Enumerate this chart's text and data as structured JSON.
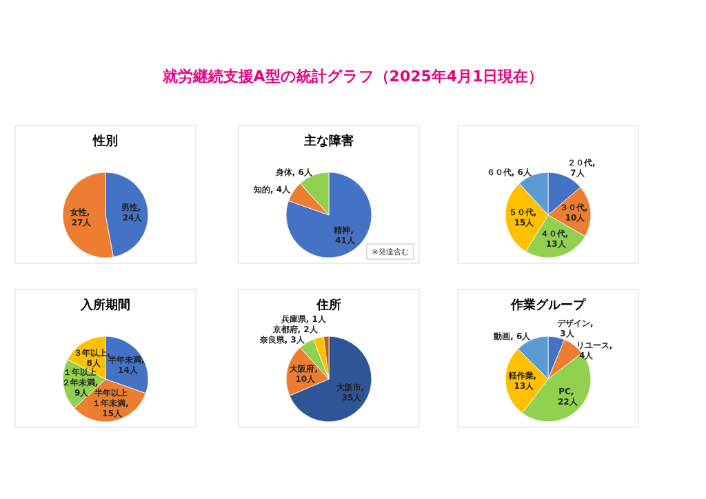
{
  "chart_data": [
    {
      "type": "other",
      "title": "就労継続支援A型の統計グラフ（2025年4月1日現在）"
    },
    {
      "type": "pie",
      "title": "性別",
      "values": [
        24,
        27
      ],
      "colors": [
        "#4472c4",
        "#ed7d31"
      ],
      "value_labels": [
        "男性, 24人",
        "女性, 27人"
      ]
    },
    {
      "type": "pie",
      "title": "主な障害",
      "values": [
        41,
        4,
        6
      ],
      "colors": [
        "#4472c4",
        "#ed7d31",
        "#92d050"
      ],
      "value_labels": [
        "精神, 41人",
        "知的, 4人",
        "身体, 6人"
      ],
      "annotations": [
        "※発達含む"
      ]
    },
    {
      "type": "pie",
      "values": [
        7,
        10,
        13,
        15,
        6
      ],
      "colors": [
        "#4472c4",
        "#ed7d31",
        "#92d050",
        "#ffc000",
        "#5b9bd5"
      ],
      "value_labels": [
        "２０代, 7人",
        "３０代, 10人",
        "４０代, 13人",
        "５０代, 15人",
        "６０代, 6人"
      ]
    },
    {
      "type": "pie",
      "title": "入所期間",
      "values": [
        14,
        15,
        9,
        8
      ],
      "colors": [
        "#4472c4",
        "#ed7d31",
        "#92d050",
        "#ffc000"
      ],
      "value_labels": [
        "半年未満, 14人",
        "半年以上１年未満, 15人",
        "１年以上２年未満, 9人",
        "３年以上, 8人"
      ]
    },
    {
      "type": "pie",
      "title": "住所",
      "values": [
        35,
        10,
        3,
        2,
        1
      ],
      "colors": [
        "#2f5597",
        "#ed7d31",
        "#92d050",
        "#ffc000",
        "#c55a11"
      ],
      "value_labels": [
        "大阪市, 35人",
        "大阪府, 10人",
        "奈良県, 3人",
        "京都府, 2人",
        "兵庫県, 1人"
      ]
    },
    {
      "type": "pie",
      "title": "作業グループ",
      "values": [
        3,
        4,
        22,
        13,
        6
      ],
      "colors": [
        "#4472c4",
        "#ed7d31",
        "#92d050",
        "#ffc000",
        "#5b9bd5"
      ],
      "value_labels": [
        "デザイン, 3人",
        "リユース, 4人",
        "PC, 22人",
        "軽作業, 13人",
        "動画, 6人"
      ]
    }
  ]
}
